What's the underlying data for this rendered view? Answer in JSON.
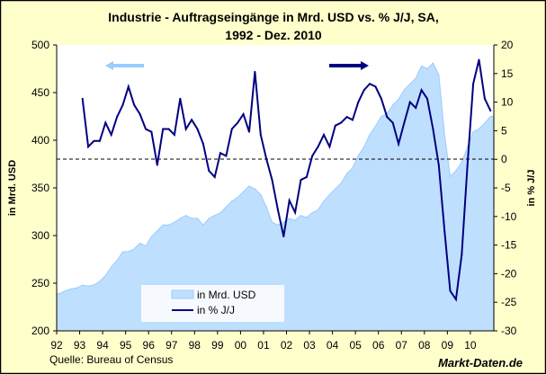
{
  "chart_data": {
    "type": "area+line",
    "title_line1": "Industrie - Auftragseingänge in Mrd. USD vs. % J/J, SA,",
    "title_line2": "1992 - Dez. 2010",
    "ylabel_left": "in Mrd. USD",
    "ylabel_right": "in % J/J",
    "ylim_left": [
      200,
      500
    ],
    "ylim_right": [
      -30,
      20
    ],
    "yticks_left": [
      "500",
      "450",
      "400",
      "350",
      "300",
      "250",
      "200"
    ],
    "yticks_right": [
      "20",
      "15",
      "10",
      "5",
      "0",
      "-5",
      "-10",
      "-15",
      "-20",
      "-25",
      "-30"
    ],
    "xticks": [
      "92",
      "93",
      "94",
      "95",
      "96",
      "97",
      "98",
      "99",
      "00",
      "01",
      "02",
      "03",
      "04",
      "05",
      "06",
      "07",
      "08",
      "09",
      "10"
    ],
    "reference_line": {
      "axis": "right",
      "value": 0,
      "style": "dashed"
    },
    "source": "Quelle: Bureau of Census",
    "brand": "Markt-Daten.de",
    "legend": {
      "placement": "bottom-left",
      "entries": [
        "in Mrd. USD",
        "in % J/J"
      ]
    },
    "colors": {
      "background": "#FFFFCC",
      "plot": "#FFFFFF",
      "area": "#BFDFFF",
      "area_edge": "#99CCFF",
      "line": "#000080"
    },
    "series": [
      {
        "name": "in Mrd. USD",
        "axis": "left",
        "kind": "area",
        "start": "1992-Q1",
        "frequency": "quarterly",
        "values": [
          239,
          242,
          244,
          245,
          248,
          247,
          248,
          252,
          258,
          267,
          274,
          283,
          283,
          286,
          292,
          289,
          299,
          305,
          311,
          311,
          314,
          318,
          321,
          318,
          318,
          311,
          318,
          321,
          324,
          330,
          336,
          340,
          346,
          352,
          349,
          343,
          330,
          314,
          311,
          314,
          318,
          316,
          321,
          319,
          324,
          327,
          336,
          343,
          349,
          355,
          365,
          371,
          384,
          393,
          406,
          415,
          425,
          428,
          437,
          443,
          453,
          459,
          465,
          478,
          475,
          481,
          469,
          406,
          362,
          368,
          377,
          393,
          409,
          412,
          418,
          425
        ]
      },
      {
        "name": "in % J/J",
        "axis": "right",
        "kind": "line",
        "start": "1993-Q1",
        "frequency": "quarterly",
        "values": [
          10.6,
          2.2,
          3.2,
          3.2,
          6.4,
          4.3,
          7.4,
          9.5,
          12.7,
          9.5,
          7.9,
          5.3,
          4.8,
          -1.0,
          5.3,
          5.3,
          4.3,
          10.6,
          5.3,
          6.9,
          5.3,
          2.7,
          -2.0,
          -3.1,
          1.1,
          0.6,
          5.3,
          6.4,
          7.9,
          4.8,
          15.3,
          4.3,
          0.1,
          -3.6,
          -8.8,
          -13.5,
          -7.2,
          -9.3,
          -3.6,
          -3.1,
          0.6,
          2.2,
          4.3,
          2.2,
          5.9,
          6.4,
          7.4,
          6.9,
          10.0,
          12.1,
          13.2,
          12.7,
          10.6,
          7.4,
          6.4,
          2.7,
          6.4,
          10.0,
          9.0,
          12.1,
          10.6,
          5.3,
          -1.0,
          -12.5,
          -23.0,
          -24.5,
          -16.7,
          -1.0,
          13.2,
          17.4,
          10.6,
          8.5
        ]
      }
    ],
    "axis_arrows": [
      {
        "points": "left",
        "color": "#99CCFF"
      },
      {
        "points": "right",
        "color": "#000080"
      }
    ]
  }
}
